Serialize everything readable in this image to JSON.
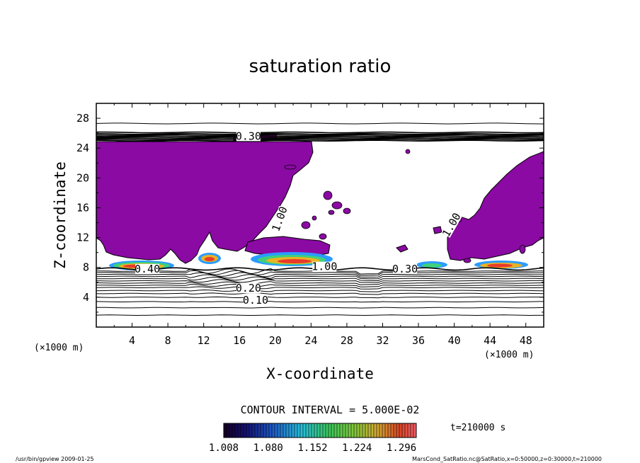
{
  "chart_data": {
    "type": "heatmap",
    "title": "saturation ratio",
    "xlabel": "X-coordinate",
    "ylabel": "Z-coordinate",
    "x_unit": "(×1000 m)",
    "z_unit": "(×1000 m)",
    "xlim": [
      0,
      50
    ],
    "ylim": [
      0,
      30
    ],
    "x_ticks": [
      4,
      8,
      12,
      16,
      20,
      24,
      28,
      32,
      36,
      40,
      44,
      48
    ],
    "y_ticks": [
      4,
      8,
      12,
      16,
      20,
      24,
      28
    ],
    "contour_interval_text": "CONTOUR INTERVAL = 5.000E-02",
    "contour_labels": [
      {
        "text": "0.30",
        "x": 17,
        "z": 25.6
      },
      {
        "text": "0.20",
        "x": 17,
        "z": 5.2
      },
      {
        "text": "0.10",
        "x": 17.8,
        "z": 3.6
      },
      {
        "text": "1.00",
        "x": 20.5,
        "z": 14.5
      },
      {
        "text": "1.00",
        "x": 39.7,
        "z": 13.7
      },
      {
        "text": "0.40",
        "x": 5.7,
        "z": 7.8
      },
      {
        "text": "0.30",
        "x": 34.5,
        "z": 7.8
      },
      {
        "text": "1.00",
        "x": 25.5,
        "z": 8.1
      }
    ],
    "colorbar": {
      "tick_labels": [
        "1.008",
        "1.080",
        "1.152",
        "1.224",
        "1.296"
      ],
      "min": 1.008,
      "max": 1.32
    },
    "time_label": "t=210000 s",
    "grid": false
  },
  "footer": {
    "left": "/usr/bin/gpview  2009-01-25",
    "right": "MarsCond_SatRatio.nc@SatRatio,x=0:50000,z=0:30000,t=210000"
  },
  "colors": {
    "supersaturated_fill": "#8a0aa3",
    "frame": "#000000"
  }
}
